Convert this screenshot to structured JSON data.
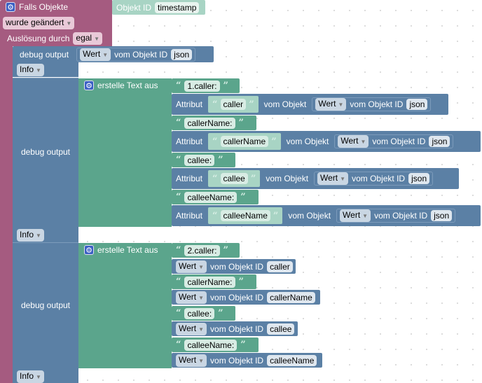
{
  "event": {
    "title": "Falls Objekte",
    "object_id_label": "Objekt ID",
    "object_id": "timestamp",
    "change": "wurde geändert",
    "trigger_label": "Auslösung durch",
    "trigger": "egal"
  },
  "debug1": {
    "label": "debug output",
    "dropdown": "Wert",
    "vom": "vom Objekt ID",
    "id": "json",
    "level": "Info"
  },
  "debug2": {
    "label": "debug output",
    "join": "erstelle Text aus",
    "level": "Info",
    "items": [
      {
        "type": "text",
        "text": "1.caller:"
      },
      {
        "type": "attr",
        "label": "Attribut",
        "attr": "caller",
        "vom": "vom Objekt",
        "dropdown": "Wert",
        "vomid": "vom Objekt ID",
        "id": "json"
      },
      {
        "type": "text",
        "text": "callerName:"
      },
      {
        "type": "attr",
        "label": "Attribut",
        "attr": "callerName",
        "vom": "vom Objekt",
        "dropdown": "Wert",
        "vomid": "vom Objekt ID",
        "id": "json"
      },
      {
        "type": "text",
        "text": "callee:"
      },
      {
        "type": "attr",
        "label": "Attribut",
        "attr": "callee",
        "vom": "vom Objekt",
        "dropdown": "Wert",
        "vomid": "vom Objekt ID",
        "id": "json"
      },
      {
        "type": "text",
        "text": "calleeName:"
      },
      {
        "type": "attr",
        "label": "Attribut",
        "attr": "calleeName",
        "vom": "vom Objekt",
        "dropdown": "Wert",
        "vomid": "vom Objekt ID",
        "id": "json"
      }
    ]
  },
  "debug3": {
    "label": "debug output",
    "join": "erstelle Text aus",
    "level": "Info",
    "items": [
      {
        "type": "text",
        "text": "2.caller:"
      },
      {
        "type": "value",
        "dropdown": "Wert",
        "vomid": "vom Objekt ID",
        "id": "caller"
      },
      {
        "type": "text",
        "text": "callerName:"
      },
      {
        "type": "value",
        "dropdown": "Wert",
        "vomid": "vom Objekt ID",
        "id": "callerName"
      },
      {
        "type": "text",
        "text": "callee:"
      },
      {
        "type": "value",
        "dropdown": "Wert",
        "vomid": "vom Objekt ID",
        "id": "callee"
      },
      {
        "type": "text",
        "text": "calleeName:"
      },
      {
        "type": "value",
        "dropdown": "Wert",
        "vomid": "vom Objekt ID",
        "id": "calleeName"
      }
    ]
  }
}
